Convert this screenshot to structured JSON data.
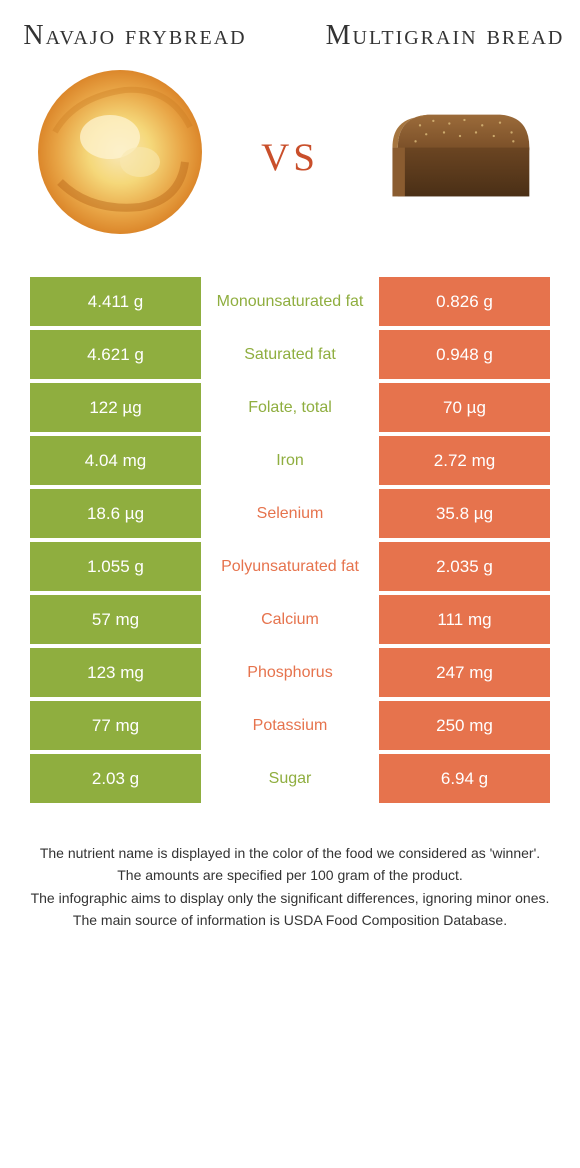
{
  "colors": {
    "green": "#8fae3f",
    "orange": "#e6734d",
    "vs_color": "#c94f2b"
  },
  "foods": {
    "left": {
      "title": "Navajo frybread"
    },
    "right": {
      "title": "Multigrain bread"
    }
  },
  "vs_label": "vs",
  "rows": [
    {
      "left": "4.411 g",
      "name": "Monounsaturated fat",
      "right": "0.826 g",
      "winner": "left"
    },
    {
      "left": "4.621 g",
      "name": "Saturated fat",
      "right": "0.948 g",
      "winner": "left"
    },
    {
      "left": "122 µg",
      "name": "Folate, total",
      "right": "70 µg",
      "winner": "left"
    },
    {
      "left": "4.04 mg",
      "name": "Iron",
      "right": "2.72 mg",
      "winner": "left"
    },
    {
      "left": "18.6 µg",
      "name": "Selenium",
      "right": "35.8 µg",
      "winner": "right"
    },
    {
      "left": "1.055 g",
      "name": "Polyunsaturated fat",
      "right": "2.035 g",
      "winner": "right"
    },
    {
      "left": "57 mg",
      "name": "Calcium",
      "right": "111 mg",
      "winner": "right"
    },
    {
      "left": "123 mg",
      "name": "Phosphorus",
      "right": "247 mg",
      "winner": "right"
    },
    {
      "left": "77 mg",
      "name": "Potassium",
      "right": "250 mg",
      "winner": "right"
    },
    {
      "left": "2.03 g",
      "name": "Sugar",
      "right": "6.94 g",
      "winner": "left"
    }
  ],
  "footer": [
    "The nutrient name is displayed in the color of the food we considered as 'winner'.",
    "The amounts are specified per 100 gram of the product.",
    "The infographic aims to display only the significant differences, ignoring minor ones.",
    "The main source of information is USDA Food Composition Database."
  ]
}
